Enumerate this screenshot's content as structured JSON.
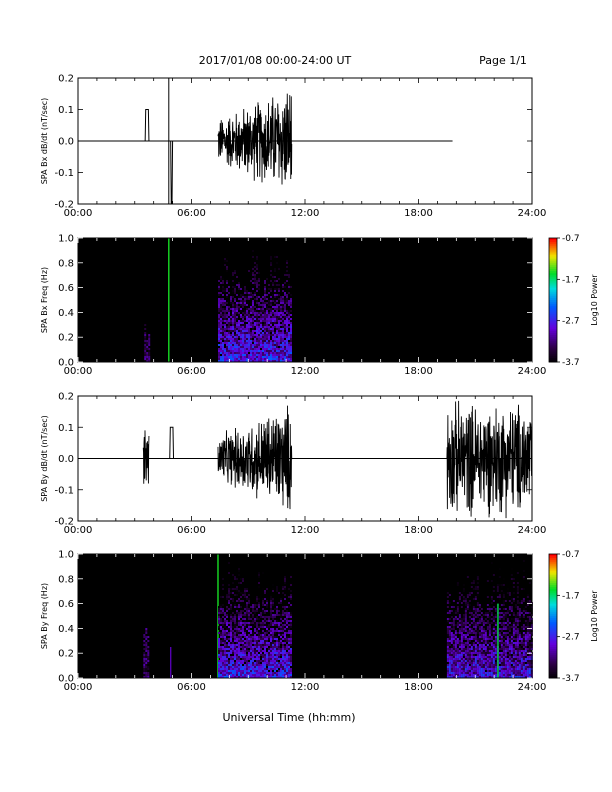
{
  "header": {
    "title": "2017/01/08  00:00-24:00 UT",
    "page": "Page 1/1"
  },
  "footer": {
    "xlabel": "Universal Time (hh:mm)"
  },
  "colors": {
    "trace": "#000000",
    "background": "#000000"
  },
  "chart_data": [
    {
      "id": "bx_timeseries",
      "type": "line",
      "ylabel": "SPA Bx dB/dt (nT/sec)",
      "xlim": [
        0,
        24
      ],
      "ylim": [
        -0.2,
        0.2
      ],
      "x_ticks": [
        "00:00",
        "06:00",
        "12:00",
        "18:00",
        "24:00"
      ],
      "y_ticks": [
        "-0.2",
        "-0.1",
        "0.0",
        "0.1",
        "0.2"
      ],
      "baseline_span_hours": [
        0,
        19.8
      ],
      "features": [
        {
          "kind": "pulse",
          "start": 3.55,
          "end": 3.75,
          "value": 0.1
        },
        {
          "kind": "spike",
          "at": 4.8,
          "min": -0.2,
          "max": 0.2
        },
        {
          "kind": "pulse",
          "start": 4.9,
          "end": 5.0,
          "value": -0.2
        },
        {
          "kind": "noise",
          "start": 7.4,
          "end": 11.3,
          "amplitude_start": 0.08,
          "amplitude_end": 0.2
        }
      ]
    },
    {
      "id": "bx_spectrogram",
      "type": "heatmap",
      "ylabel": "SPA Bx Freq (Hz)",
      "xlim": [
        0,
        24
      ],
      "ylim": [
        0,
        1.0
      ],
      "x_ticks": [
        "00:00",
        "06:00",
        "12:00",
        "18:00",
        "24:00"
      ],
      "y_ticks": [
        "0.0",
        "0.2",
        "0.4",
        "0.6",
        "0.8",
        "1.0"
      ],
      "colorbar_label": "Log10 Power",
      "colorbar_ticks": [
        "-0.7",
        "-1.7",
        "-2.7",
        "-3.7"
      ],
      "color_range": [
        -3.7,
        -0.7
      ],
      "features": [
        {
          "kind": "burst",
          "start": 3.5,
          "end": 3.75,
          "fmax": 0.3,
          "level": -3.0
        },
        {
          "kind": "line",
          "at": 4.8,
          "fmax": 1.0,
          "level": -1.5
        },
        {
          "kind": "band",
          "start": 7.4,
          "end": 11.3,
          "fmax": 0.95,
          "level_low": -2.3
        }
      ]
    },
    {
      "id": "by_timeseries",
      "type": "line",
      "ylabel": "SPA By dB/dt (nT/sec)",
      "xlim": [
        0,
        24
      ],
      "ylim": [
        -0.2,
        0.2
      ],
      "x_ticks": [
        "00:00",
        "06:00",
        "12:00",
        "18:00",
        "24:00"
      ],
      "y_ticks": [
        "-0.2",
        "-0.1",
        "0.0",
        "0.1",
        "0.2"
      ],
      "baseline_span_hours": [
        0,
        24
      ],
      "features": [
        {
          "kind": "noise",
          "start": 3.45,
          "end": 3.75,
          "amplitude_start": 0.12,
          "amplitude_end": 0.12
        },
        {
          "kind": "pulse",
          "start": 4.85,
          "end": 5.05,
          "value": 0.1
        },
        {
          "kind": "noise",
          "start": 7.4,
          "end": 11.3,
          "amplitude_start": 0.08,
          "amplitude_end": 0.2
        },
        {
          "kind": "noise",
          "start": 19.5,
          "end": 24.0,
          "amplitude_start": 0.2,
          "amplitude_end": 0.2
        }
      ]
    },
    {
      "id": "by_spectrogram",
      "type": "heatmap",
      "ylabel": "SPA By Freq (Hz)",
      "xlim": [
        0,
        24
      ],
      "ylim": [
        0,
        1.0
      ],
      "x_ticks": [
        "00:00",
        "06:00",
        "12:00",
        "18:00",
        "24:00"
      ],
      "y_ticks": [
        "0.0",
        "0.2",
        "0.4",
        "0.6",
        "0.8",
        "1.0"
      ],
      "colorbar_label": "Log10 Power",
      "colorbar_ticks": [
        "-0.7",
        "-1.7",
        "-2.7",
        "-3.7"
      ],
      "color_range": [
        -3.7,
        -0.7
      ],
      "features": [
        {
          "kind": "burst",
          "start": 3.45,
          "end": 3.75,
          "fmax": 0.45,
          "level": -3.0
        },
        {
          "kind": "line",
          "at": 4.9,
          "fmax": 0.25,
          "level": -3.0
        },
        {
          "kind": "line",
          "at": 7.4,
          "fmax": 1.0,
          "level": -1.5
        },
        {
          "kind": "band",
          "start": 7.4,
          "end": 11.3,
          "fmax": 0.95,
          "level_low": -2.3
        },
        {
          "kind": "band",
          "start": 19.5,
          "end": 24.0,
          "fmax": 1.0,
          "level_low": -2.4
        },
        {
          "kind": "line",
          "at": 22.2,
          "fmax": 0.6,
          "level": -1.6
        }
      ]
    }
  ]
}
